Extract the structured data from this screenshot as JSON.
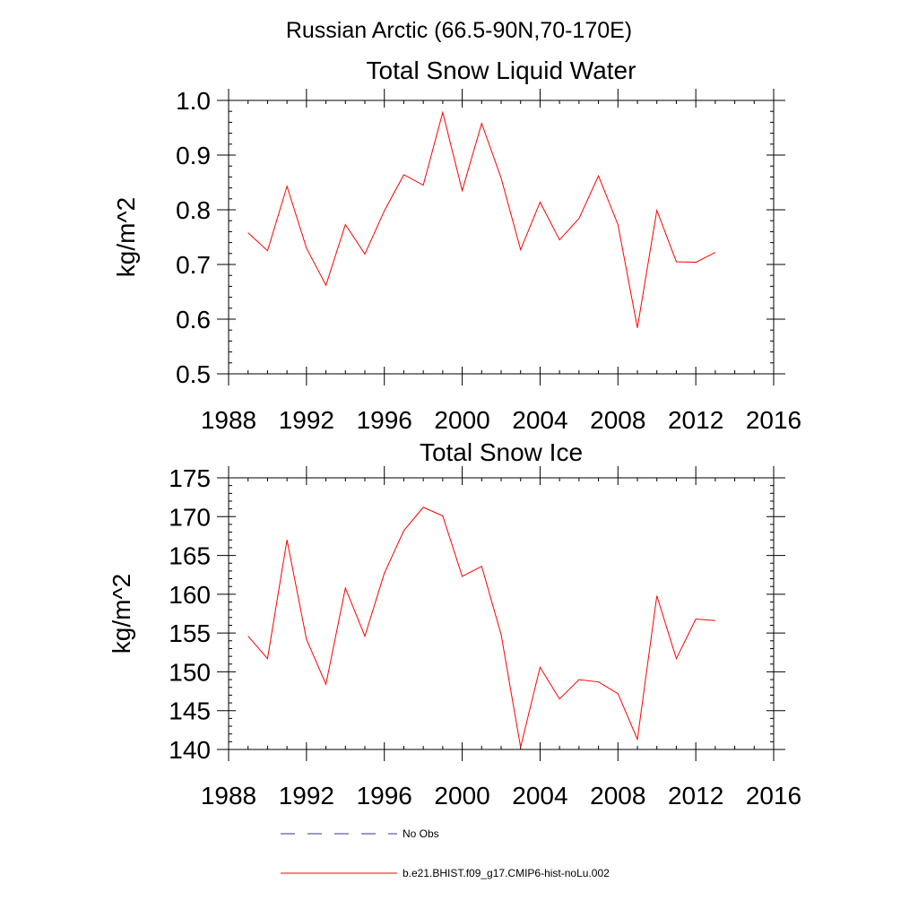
{
  "figure": {
    "suptitle": "Russian Arctic (66.5-90N,70-170E)"
  },
  "chart_data": [
    {
      "type": "line",
      "title": "Total Snow Liquid Water",
      "xlabel": "",
      "ylabel": "kg/m^2",
      "xlim": [
        1988,
        2016
      ],
      "ylim": [
        0.5,
        1.0
      ],
      "xticks": [
        1988,
        1992,
        1996,
        2000,
        2004,
        2008,
        2012,
        2016
      ],
      "yticks": [
        0.5,
        0.6,
        0.7,
        0.8,
        0.9,
        1.0
      ],
      "ytick_labels": [
        "0.5",
        "0.6",
        "0.7",
        "0.8",
        "0.9",
        "1.0"
      ],
      "grid": false,
      "x": [
        1989,
        1990,
        1991,
        1992,
        1993,
        1994,
        1995,
        1996,
        1997,
        1998,
        1999,
        2000,
        2001,
        2002,
        2003,
        2004,
        2005,
        2006,
        2007,
        2008,
        2009,
        2010,
        2011,
        2012,
        2013
      ],
      "series": [
        {
          "name": "b.e21.BHIST.f09_g17.CMIP6-hist-noLu.002",
          "color": "#ff0000",
          "values": [
            0.758,
            0.725,
            0.843,
            0.73,
            0.662,
            0.773,
            0.719,
            0.798,
            0.864,
            0.845,
            0.978,
            0.835,
            0.958,
            0.858,
            0.727,
            0.814,
            0.745,
            0.784,
            0.862,
            0.773,
            0.584,
            0.799,
            0.705,
            0.704,
            0.722
          ]
        }
      ]
    },
    {
      "type": "line",
      "title": "Total Snow Ice",
      "xlabel": "",
      "ylabel": "kg/m^2",
      "xlim": [
        1988,
        2016
      ],
      "ylim": [
        140,
        175
      ],
      "xticks": [
        1988,
        1992,
        1996,
        2000,
        2004,
        2008,
        2012,
        2016
      ],
      "yticks": [
        140,
        145,
        150,
        155,
        160,
        165,
        170,
        175
      ],
      "ytick_labels": [
        "140",
        "145",
        "150",
        "155",
        "160",
        "165",
        "170",
        "175"
      ],
      "grid": false,
      "x": [
        1989,
        1990,
        1991,
        1992,
        1993,
        1994,
        1995,
        1996,
        1997,
        1998,
        1999,
        2000,
        2001,
        2002,
        2003,
        2004,
        2005,
        2006,
        2007,
        2008,
        2009,
        2010,
        2011,
        2012,
        2013
      ],
      "series": [
        {
          "name": "b.e21.BHIST.f09_g17.CMIP6-hist-noLu.002",
          "color": "#ff0000",
          "values": [
            154.6,
            151.7,
            167.0,
            154.2,
            148.4,
            160.8,
            154.6,
            162.7,
            168.2,
            171.2,
            170.1,
            162.3,
            163.6,
            154.8,
            140.3,
            150.6,
            146.5,
            149.0,
            148.7,
            147.2,
            141.3,
            159.8,
            151.7,
            156.8,
            156.6
          ]
        }
      ]
    }
  ],
  "legend": {
    "position": "bottom",
    "items": [
      {
        "label": "No Obs",
        "style": "dashed",
        "color": "#333399"
      },
      {
        "label": "b.e21.BHIST.f09_g17.CMIP6-hist-noLu.002",
        "style": "solid",
        "color": "#ff0000"
      }
    ]
  }
}
